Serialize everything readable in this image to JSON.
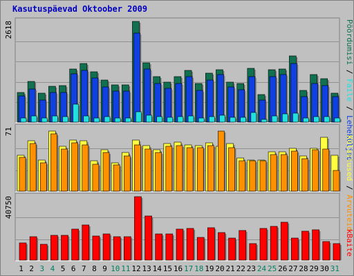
{
  "page": {
    "title": "Kasutuspäevad Oktoober 2009"
  },
  "colors": {
    "background": "#c0c0c0",
    "panel": "#c0c0c0",
    "grid": "#909090",
    "pages": "#1040e0",
    "visits": "#107050",
    "hits": "#20e0e0",
    "files": "#ffff40",
    "visitors": "#ff9000",
    "kbytes": "#ff0000",
    "weekend_label": "#008060",
    "weekday_label": "#000000"
  },
  "chart_data": [
    {
      "type": "bar",
      "title": "Kasutuspäevad Oktoober 2009",
      "ymax_label": "2618",
      "ylim": [
        0,
        2618
      ],
      "categories": [
        "1",
        "2",
        "3",
        "4",
        "5",
        "6",
        "7",
        "8",
        "9",
        "10",
        "11",
        "12",
        "13",
        "14",
        "15",
        "16",
        "17",
        "18",
        "19",
        "20",
        "21",
        "22",
        "23",
        "24",
        "25",
        "26",
        "27",
        "28",
        "29",
        "30",
        "31"
      ],
      "weekend_days": [
        "3",
        "4",
        "10",
        "11",
        "17",
        "18",
        "24",
        "25",
        "31"
      ],
      "legend": [
        "Pöördumisi",
        "Faile",
        "Leheküljed",
        "Külastused",
        "Arvuteid",
        "kBaite"
      ],
      "series": [
        {
          "name": "Külastused",
          "color_key": "visits",
          "values": [
            770,
            1060,
            750,
            940,
            950,
            1380,
            1520,
            1310,
            1090,
            960,
            960,
            2618,
            1550,
            1180,
            1040,
            1180,
            1340,
            1010,
            1270,
            1370,
            1040,
            1000,
            1400,
            720,
            1370,
            1380,
            1720,
            830,
            1240,
            1130,
            760
          ]
        },
        {
          "name": "Leheküljed",
          "color_key": "pages",
          "values": [
            680,
            860,
            570,
            770,
            780,
            1250,
            1340,
            1150,
            920,
            800,
            800,
            2320,
            1380,
            1000,
            880,
            1000,
            1180,
            830,
            1100,
            1240,
            910,
            840,
            1180,
            580,
            1180,
            1230,
            1520,
            660,
            1000,
            950,
            660
          ]
        },
        {
          "name": "Faile",
          "color_key": "hits",
          "values": [
            110,
            170,
            110,
            160,
            150,
            470,
            170,
            110,
            140,
            110,
            110,
            270,
            180,
            140,
            120,
            140,
            170,
            110,
            140,
            180,
            130,
            130,
            260,
            80,
            170,
            220,
            230,
            110,
            150,
            140,
            100
          ]
        }
      ]
    },
    {
      "type": "bar",
      "ymax_label": "71",
      "ylim": [
        0,
        71
      ],
      "categories": [
        "1",
        "2",
        "3",
        "4",
        "5",
        "6",
        "7",
        "8",
        "9",
        "10",
        "11",
        "12",
        "13",
        "14",
        "15",
        "16",
        "17",
        "18",
        "19",
        "20",
        "21",
        "22",
        "23",
        "24",
        "25",
        "26",
        "27",
        "28",
        "29",
        "30",
        "31"
      ],
      "series": [
        {
          "name": "Külastused",
          "color_key": "files",
          "values": [
            40,
            56,
            35,
            67,
            50,
            57,
            56,
            34,
            46,
            32,
            43,
            57,
            51,
            46,
            53,
            55,
            52,
            51,
            54,
            50,
            53,
            37,
            35,
            35,
            44,
            44,
            48,
            39,
            48,
            60,
            40
          ]
        },
        {
          "name": "Arvuteid",
          "color_key": "visitors",
          "values": [
            38,
            53,
            32,
            64,
            47,
            54,
            52,
            30,
            43,
            29,
            39,
            52,
            47,
            43,
            50,
            51,
            49,
            49,
            51,
            67,
            49,
            34,
            34,
            34,
            41,
            41,
            45,
            36,
            46,
            47,
            23
          ]
        }
      ]
    },
    {
      "type": "bar",
      "ymax_label": "40750",
      "ylim": [
        0,
        40750
      ],
      "categories": [
        "1",
        "2",
        "3",
        "4",
        "5",
        "6",
        "7",
        "8",
        "9",
        "10",
        "11",
        "12",
        "13",
        "14",
        "15",
        "16",
        "17",
        "18",
        "19",
        "20",
        "21",
        "22",
        "23",
        "24",
        "25",
        "26",
        "27",
        "28",
        "29",
        "30",
        "31"
      ],
      "series": [
        {
          "name": "kBaite",
          "color_key": "kbytes",
          "values": [
            11000,
            15000,
            10000,
            16000,
            16000,
            20000,
            22500,
            15500,
            17000,
            15000,
            15000,
            40750,
            28500,
            17000,
            17000,
            20000,
            20500,
            14500,
            21000,
            17500,
            14000,
            19000,
            10500,
            20500,
            21500,
            24500,
            14000,
            18500,
            19500,
            12000,
            10500
          ]
        }
      ]
    }
  ]
}
